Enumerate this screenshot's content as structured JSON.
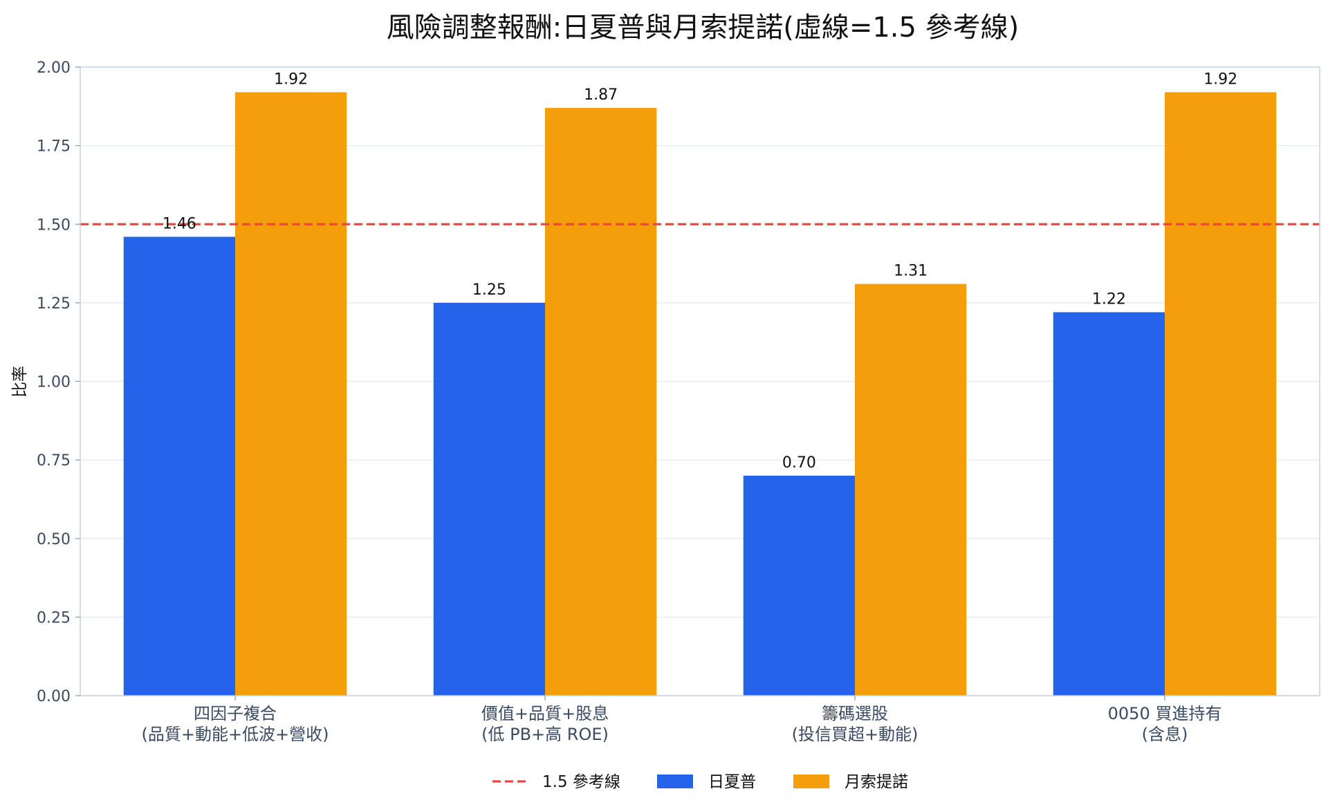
{
  "chart_data": {
    "type": "bar",
    "title": "風險調整報酬:日夏普與月索提諾(虛線=1.5 參考線)",
    "xlabel": "",
    "ylabel": "比率",
    "ylim": [
      0,
      2.0
    ],
    "yticks": [
      "0.00",
      "0.25",
      "0.50",
      "0.75",
      "1.00",
      "1.25",
      "1.50",
      "1.75",
      "2.00"
    ],
    "grid": true,
    "legend_position": "bottom-center",
    "categories": [
      [
        "四因子複合",
        "(品質+動能+低波+營收)"
      ],
      [
        "價值+品質+股息",
        "(低 PB+高 ROE)"
      ],
      [
        "籌碼選股",
        "(投信買超+動能)"
      ],
      [
        "0050 買進持有",
        "(含息)"
      ]
    ],
    "series": [
      {
        "name": "日夏普",
        "color": "#2563eb",
        "values": [
          1.46,
          1.25,
          0.7,
          1.22
        ],
        "labels": [
          "1.46",
          "1.25",
          "0.70",
          "1.22"
        ]
      },
      {
        "name": "月索提諾",
        "color": "#f59e0b",
        "values": [
          1.92,
          1.87,
          1.31,
          1.92
        ],
        "labels": [
          "1.92",
          "1.87",
          "1.31",
          "1.92"
        ]
      }
    ],
    "reference_line": {
      "value": 1.5,
      "label": "1.5 參考線",
      "color": "#ef4444",
      "style": "dashed"
    }
  }
}
